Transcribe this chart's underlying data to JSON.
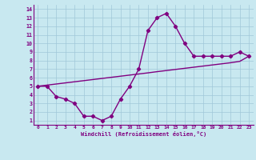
{
  "x": [
    0,
    1,
    2,
    3,
    4,
    5,
    6,
    7,
    8,
    9,
    10,
    11,
    12,
    13,
    14,
    15,
    16,
    17,
    18,
    19,
    20,
    21,
    22,
    23
  ],
  "y_curve": [
    5.0,
    5.0,
    3.8,
    3.5,
    3.0,
    1.5,
    1.5,
    1.0,
    1.5,
    3.5,
    5.0,
    7.0,
    11.5,
    13.0,
    13.5,
    12.0,
    10.0,
    8.5,
    8.5,
    8.5,
    8.5,
    8.5,
    9.0,
    8.5
  ],
  "y_line": [
    5.0,
    5.13,
    5.26,
    5.39,
    5.52,
    5.65,
    5.78,
    5.91,
    6.04,
    6.17,
    6.3,
    6.43,
    6.56,
    6.7,
    6.83,
    6.96,
    7.09,
    7.22,
    7.35,
    7.48,
    7.61,
    7.74,
    7.9,
    8.5
  ],
  "color": "#800080",
  "bg_color": "#c8e8f0",
  "grid_color": "#a0c8d8",
  "xlabel": "Windchill (Refroidissement éolien,°C)",
  "xlim": [
    -0.5,
    23.5
  ],
  "ylim": [
    0.5,
    14.5
  ],
  "xticks": [
    0,
    1,
    2,
    3,
    4,
    5,
    6,
    7,
    8,
    9,
    10,
    11,
    12,
    13,
    14,
    15,
    16,
    17,
    18,
    19,
    20,
    21,
    22,
    23
  ],
  "yticks": [
    1,
    2,
    3,
    4,
    5,
    6,
    7,
    8,
    9,
    10,
    11,
    12,
    13,
    14
  ],
  "marker": "D",
  "marker_size": 2.2,
  "line_width": 1.0
}
